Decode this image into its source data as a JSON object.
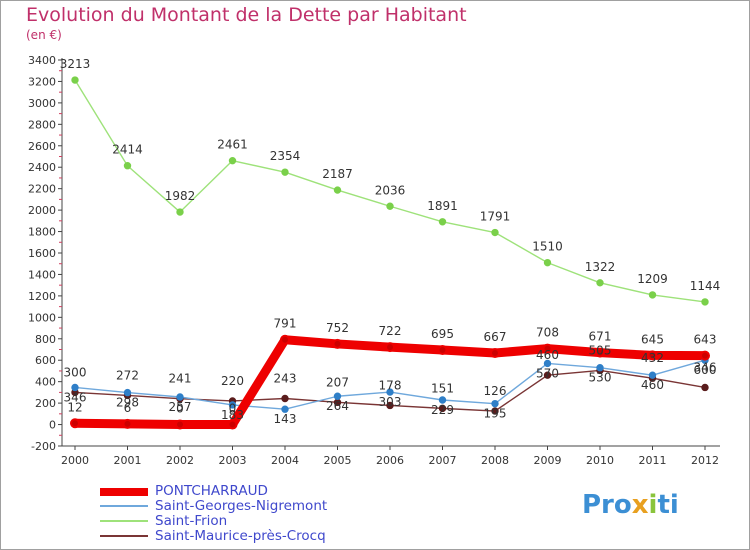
{
  "title": "Evolution du Montant de la Dette par Habitant",
  "subtitle": "(en €)",
  "logo": {
    "p1": "Pro",
    "p2": "x",
    "p3": "i",
    "p4": "ti"
  },
  "chart_data": {
    "type": "line",
    "x": [
      "2000",
      "2001",
      "2002",
      "2003",
      "2004",
      "2005",
      "2006",
      "2007",
      "2008",
      "2009",
      "2010",
      "2011",
      "2012"
    ],
    "ylim": [
      -200,
      3400
    ],
    "yticks": [
      "-200",
      "0",
      "200",
      "400",
      "600",
      "800",
      "1000",
      "1200",
      "1400",
      "1600",
      "1800",
      "2000",
      "2200",
      "2400",
      "2600",
      "2800",
      "3000",
      "3200",
      "3400"
    ],
    "ytick_values": [
      -200,
      0,
      200,
      400,
      600,
      800,
      1000,
      1200,
      1400,
      1600,
      1800,
      2000,
      2200,
      2400,
      2600,
      2800,
      3000,
      3200,
      3400
    ],
    "legend_position": "bottom-left",
    "grid": false,
    "series": [
      {
        "name": "PONTCHARRAUD",
        "color": "#ee0000",
        "width": 9,
        "labelled": true,
        "values": [
          12,
          6,
          0,
          0,
          791,
          752,
          722,
          695,
          667,
          708,
          671,
          645,
          643
        ]
      },
      {
        "name": "Saint-Georges-Nigremont",
        "color": "#6fa8dc",
        "width": 1.4,
        "labelled": true,
        "values": [
          346,
          298,
          257,
          183,
          143,
          264,
          303,
          229,
          195,
          570,
          530,
          460,
          600
        ]
      },
      {
        "name": "Saint-Frion",
        "color": "#9ee27a",
        "width": 1.4,
        "labelled": true,
        "values": [
          3213,
          2414,
          1982,
          2461,
          2354,
          2187,
          2036,
          1891,
          1791,
          1510,
          1322,
          1209,
          1144
        ]
      },
      {
        "name": "Saint-Maurice-près-Crocq",
        "color": "#7a3535",
        "width": 1.4,
        "labelled": true,
        "values": [
          300,
          272,
          241,
          220,
          243,
          207,
          178,
          151,
          126,
          460,
          505,
          432,
          346
        ]
      }
    ]
  }
}
